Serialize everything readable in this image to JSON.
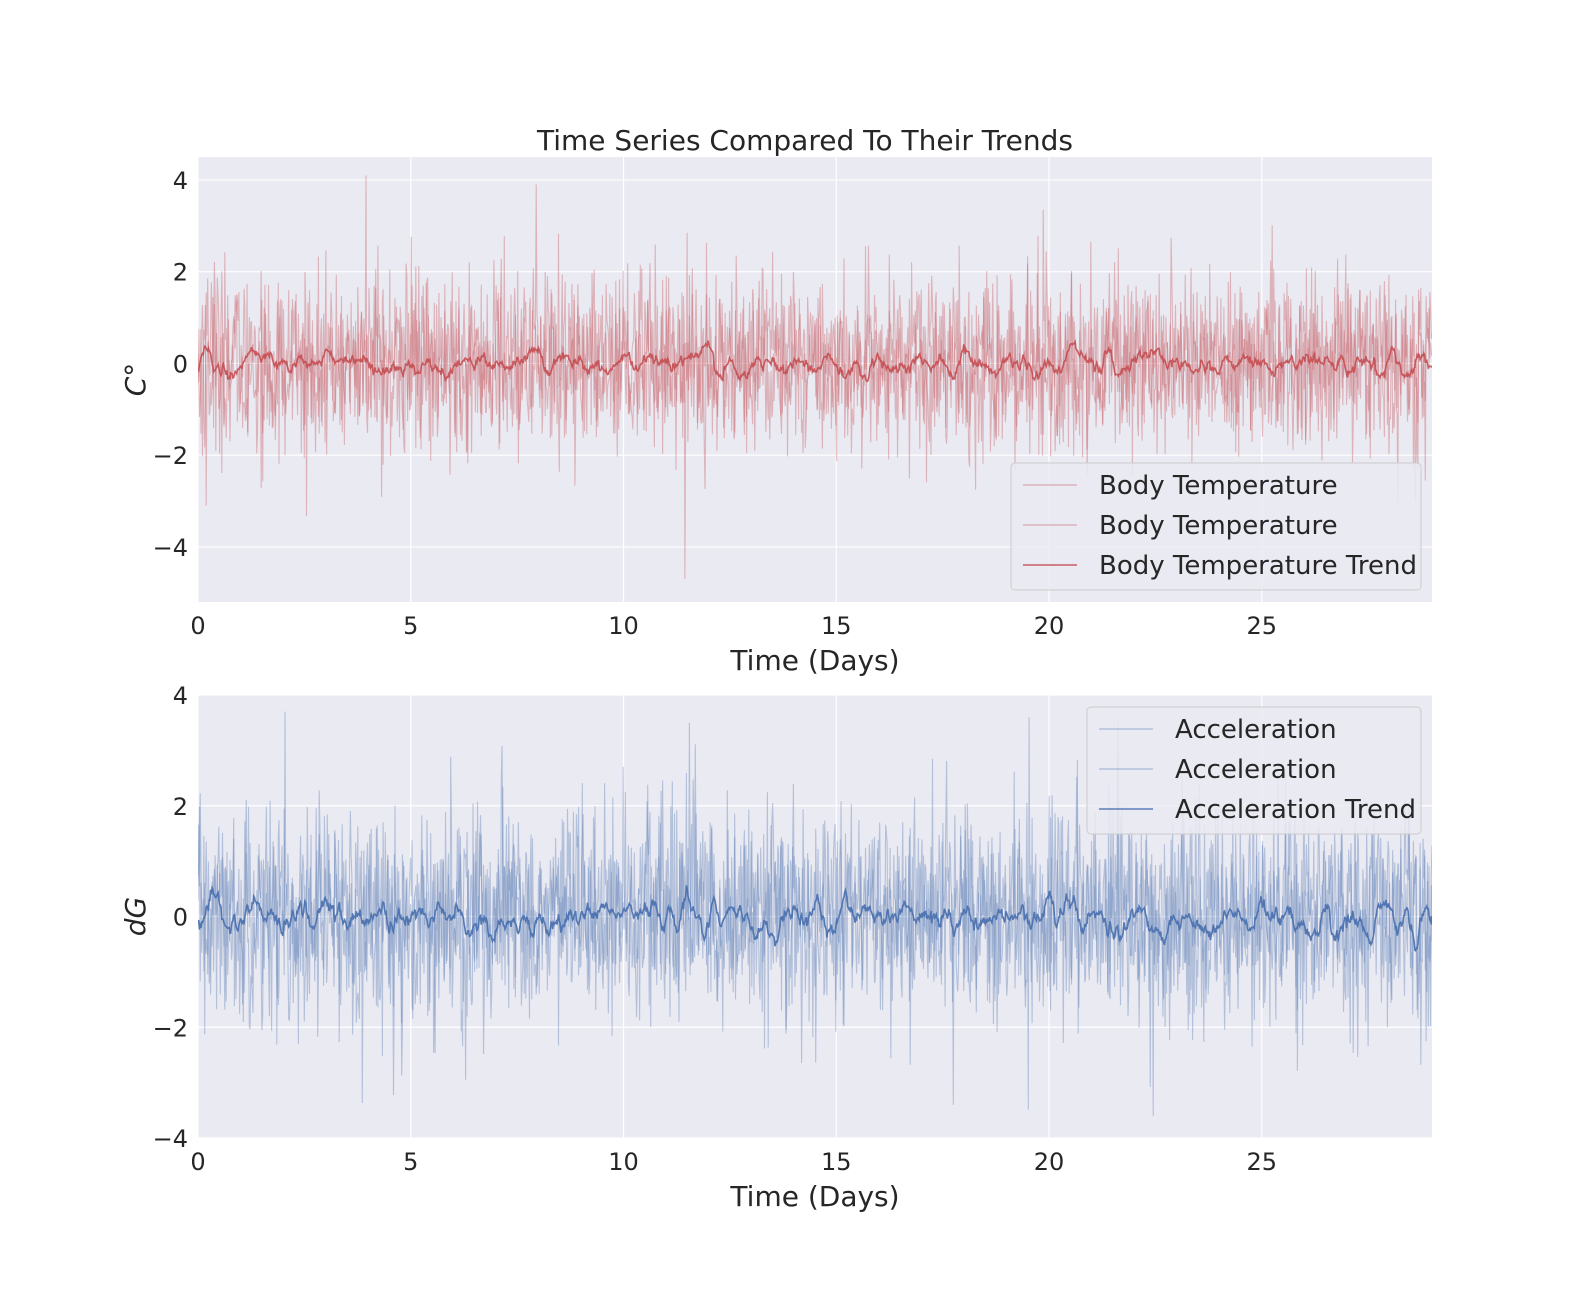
{
  "figure_title": "Time Series Compared To Their Trends",
  "colors": {
    "axes_bg": "#EAEAF2",
    "grid": "#FFFFFF",
    "temperature": "#C44E52",
    "acceleration": "#4C72B0"
  },
  "chart_data": [
    {
      "type": "line",
      "title": "Time Series Compared To Their Trends",
      "xlabel": "Time (Days)",
      "ylabel": "C°",
      "xlim": [
        0,
        29
      ],
      "ylim": [
        -5.2,
        4.5
      ],
      "xticks": [
        0,
        5,
        10,
        15,
        20,
        25
      ],
      "yticks": [
        -4,
        -2,
        0,
        2,
        4
      ],
      "grid": true,
      "legend_position": "lower-right",
      "noise_note": "dense noisy signal, roughly 1 sample per 0.0175 days",
      "series": [
        {
          "name": "Body Temperature",
          "role": "raw",
          "color": "#C44E52",
          "alpha": 0.35,
          "std": 0.95
        },
        {
          "name": "Body Temperature",
          "role": "raw",
          "color": "#C44E52",
          "alpha": 0.35,
          "std": 0.95
        },
        {
          "name": "Body Temperature Trend",
          "role": "trend",
          "color": "#C44E52",
          "alpha": 0.9,
          "std": 0.22
        }
      ],
      "extremes": [
        {
          "x": 3.95,
          "y": 4.1
        },
        {
          "x": 7.95,
          "y": 3.9
        },
        {
          "x": 11.45,
          "y": -4.7
        },
        {
          "x": 0.2,
          "y": -3.1
        }
      ]
    },
    {
      "type": "line",
      "title": "",
      "xlabel": "Time (Days)",
      "ylabel": "dG",
      "xlim": [
        0,
        29
      ],
      "ylim": [
        -4,
        4
      ],
      "xticks": [
        0,
        5,
        10,
        15,
        20,
        25
      ],
      "yticks": [
        -4,
        -2,
        0,
        2,
        4
      ],
      "grid": true,
      "legend_position": "upper-right",
      "series": [
        {
          "name": "Acceleration",
          "role": "raw",
          "color": "#4C72B0",
          "alpha": 0.35,
          "std": 0.95
        },
        {
          "name": "Acceleration",
          "role": "raw",
          "color": "#4C72B0",
          "alpha": 0.35,
          "std": 0.95
        },
        {
          "name": "Acceleration Trend",
          "role": "trend",
          "color": "#4C72B0",
          "alpha": 0.95,
          "std": 0.25
        }
      ],
      "extremes": [
        {
          "x": 2.05,
          "y": 3.7
        },
        {
          "x": 22.45,
          "y": -3.6
        },
        {
          "x": 17.75,
          "y": -3.4
        },
        {
          "x": 11.55,
          "y": 3.5
        }
      ]
    }
  ]
}
